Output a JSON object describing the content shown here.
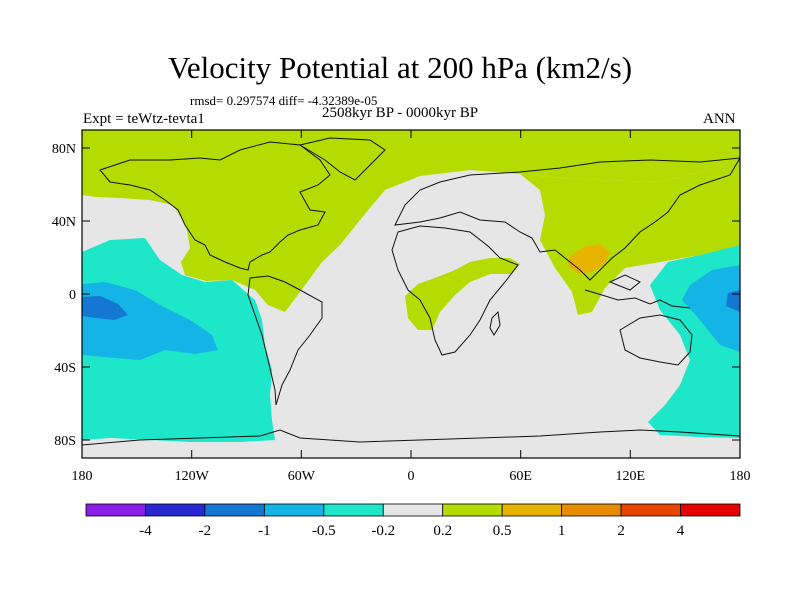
{
  "title": "Velocity Potential at 200 hPa (km2/s)",
  "stats": "rmsd= 0.297574 diff= -4.32389e-05",
  "experiment": "Expt = teWtz-tevta1",
  "period": "2508kyr BP - 0000kyr BP",
  "season": "ANN",
  "axes": {
    "x_ticks": [
      "180",
      "120W",
      "60W",
      "0",
      "60E",
      "120E",
      "180"
    ],
    "y_ticks": [
      "80N",
      "40N",
      "0",
      "40S",
      "80S"
    ]
  },
  "colorbar": {
    "labels": [
      "-4",
      "-2",
      "-1",
      "-0.5",
      "-0.2",
      "0.2",
      "0.5",
      "1",
      "2",
      "4"
    ],
    "colors": [
      "#8a1ee6",
      "#2828d2",
      "#1478d2",
      "#14b4e6",
      "#1ee6c8",
      "#e6e6e6",
      "#b4dc00",
      "#e6b400",
      "#e68c00",
      "#e64600",
      "#e60000"
    ]
  },
  "fills": {
    "positive_low": "#b4dc00",
    "positive_mid": "#e6b400",
    "negative_low": "#1ee6c8",
    "negative_mid": "#14b4e6",
    "negative_high": "#1478d2",
    "neutral": "#e6e6e6"
  }
}
